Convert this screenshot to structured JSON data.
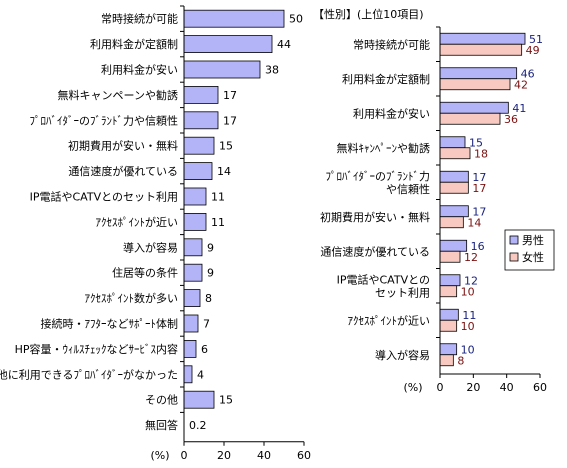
{
  "chart_data": [
    {
      "type": "bar",
      "orientation": "horizontal",
      "title": "",
      "xlabel": "(%)",
      "unit_label": "(%)",
      "xlim": [
        0,
        60
      ],
      "ticks": [
        0,
        20,
        40,
        60
      ],
      "categories": [
        "常時接続が可能",
        "利用料金が定額制",
        "利用料金が安い",
        "無料キャンペーンや勧誘",
        "ﾌﾟﾛﾊﾞｲﾀﾞｰのﾌﾞﾗﾝﾄﾞ力や信頼性",
        "初期費用が安い・無料",
        "通信速度が優れている",
        "IP電話やCATVとのセット利用",
        "ｱｸｾｽﾎﾟｲﾝﾄが近い",
        "導入が容易",
        "住居等の条件",
        "ｱｸｾｽﾎﾟｲﾝﾄ数が多い",
        "接続時・ｱﾌﾀｰなどｻﾎﾟｰﾄ体制",
        "HP容量・ｳｨﾙｽﾁｪｯｸなどｻｰﾋﾞｽ内容",
        "他に利用できるﾌﾟﾛﾊﾞｲﾀﾞｰがなかった",
        "その他",
        "無回答"
      ],
      "values": [
        50,
        44,
        38,
        17,
        17,
        15,
        14,
        11,
        11,
        9,
        9,
        8,
        7,
        6,
        4,
        15,
        0.2
      ],
      "data_labels": [
        "50",
        "44",
        "38",
        "17",
        "17",
        "15",
        "14",
        "11",
        "11",
        "9",
        "9",
        "8",
        "7",
        "6",
        "4",
        "15",
        "0.2"
      ],
      "color": "#b3b3f7",
      "grid": false
    },
    {
      "type": "bar",
      "orientation": "horizontal",
      "title": "【性別】(上位10項目)",
      "xlabel": "(%)",
      "unit_label": "(%)",
      "xlim": [
        0,
        60
      ],
      "ticks": [
        0,
        20,
        40,
        60
      ],
      "categories": [
        [
          "常時接続が可能"
        ],
        [
          "利用料金が定額制"
        ],
        [
          "利用料金が安い"
        ],
        [
          "無料ｷｬﾝﾍﾟｰﾝや勧誘"
        ],
        [
          "ﾌﾟﾛﾊﾞｲﾀﾞｰのﾌﾞﾗﾝﾄﾞ力",
          "や信頼性"
        ],
        [
          "初期費用が安い・無料"
        ],
        [
          "通信速度が優れている"
        ],
        [
          "IP電話やCATVとの",
          "セット利用"
        ],
        [
          "ｱｸｾｽﾎﾟｲﾝﾄが近い"
        ],
        [
          "導入が容易"
        ]
      ],
      "series": [
        {
          "name": "男性",
          "values": [
            51,
            46,
            41,
            15,
            17,
            17,
            16,
            12,
            11,
            10
          ],
          "color": "#b3b3f7",
          "label_color": "#1a237e"
        },
        {
          "name": "女性",
          "values": [
            49,
            42,
            36,
            18,
            17,
            14,
            12,
            10,
            10,
            8
          ],
          "color": "#f7c9c0",
          "label_color": "#7b1010"
        }
      ],
      "legend_position": "right",
      "grid": false
    }
  ]
}
